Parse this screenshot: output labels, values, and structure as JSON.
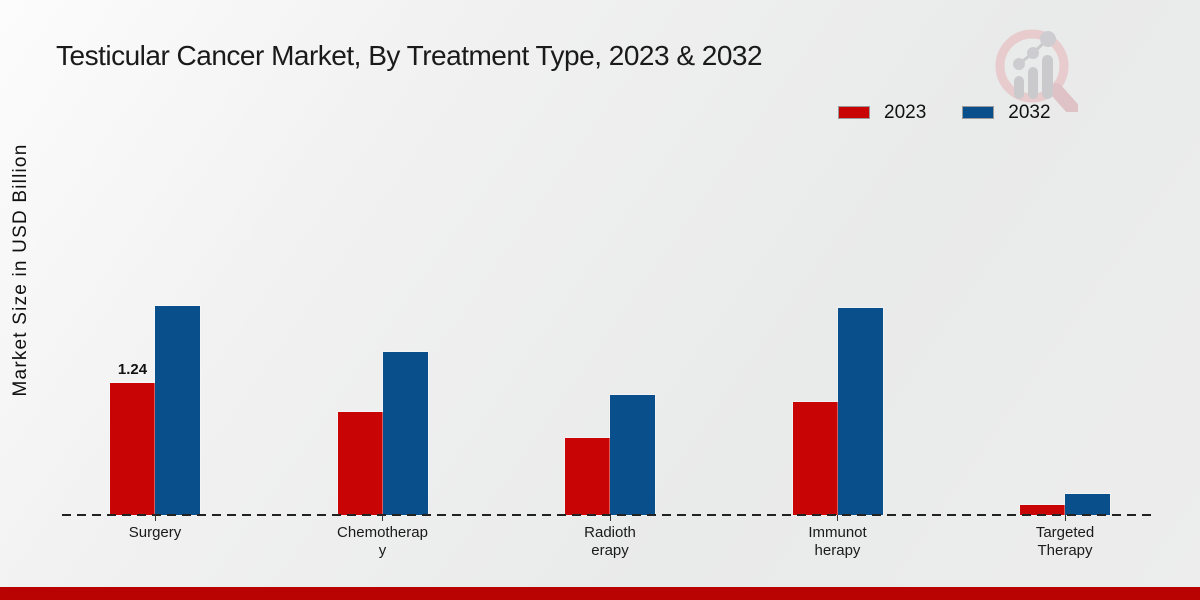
{
  "page": {
    "title": "Testicular Cancer Market, By Treatment Type, 2023 & 2032",
    "footer_color": "#b90303"
  },
  "legend": {
    "items": [
      {
        "label": "2023",
        "color": "#c80404"
      },
      {
        "label": "2032",
        "color": "#084f8c"
      }
    ]
  },
  "chart_data": {
    "type": "bar",
    "title": "Testicular Cancer Market, By Treatment Type, 2023 & 2032",
    "xlabel": "",
    "ylabel": "Market Size in USD Billion",
    "categories": [
      "Surgery",
      "Chemotherapy",
      "Radiotherapy",
      "Immunotherapy",
      "Targeted Therapy"
    ],
    "category_display_lines": [
      [
        "Surgery"
      ],
      [
        "Chemotherap",
        "y"
      ],
      [
        "Radioth",
        "erapy"
      ],
      [
        "Immunot",
        "herapy"
      ],
      [
        "Targeted",
        "Therapy"
      ]
    ],
    "series": [
      {
        "name": "2023",
        "color": "#c80404",
        "values": [
          1.24,
          0.97,
          0.72,
          1.06,
          0.09
        ]
      },
      {
        "name": "2032",
        "color": "#084f8c",
        "values": [
          1.96,
          1.53,
          1.13,
          1.94,
          0.2
        ]
      }
    ],
    "annotations": [
      {
        "series": "2023",
        "category": "Surgery",
        "text": "1.24"
      }
    ],
    "ylim": [
      0,
      2.2
    ],
    "grid": false,
    "legend_position": "top-right",
    "baseline_style": "dashed"
  }
}
